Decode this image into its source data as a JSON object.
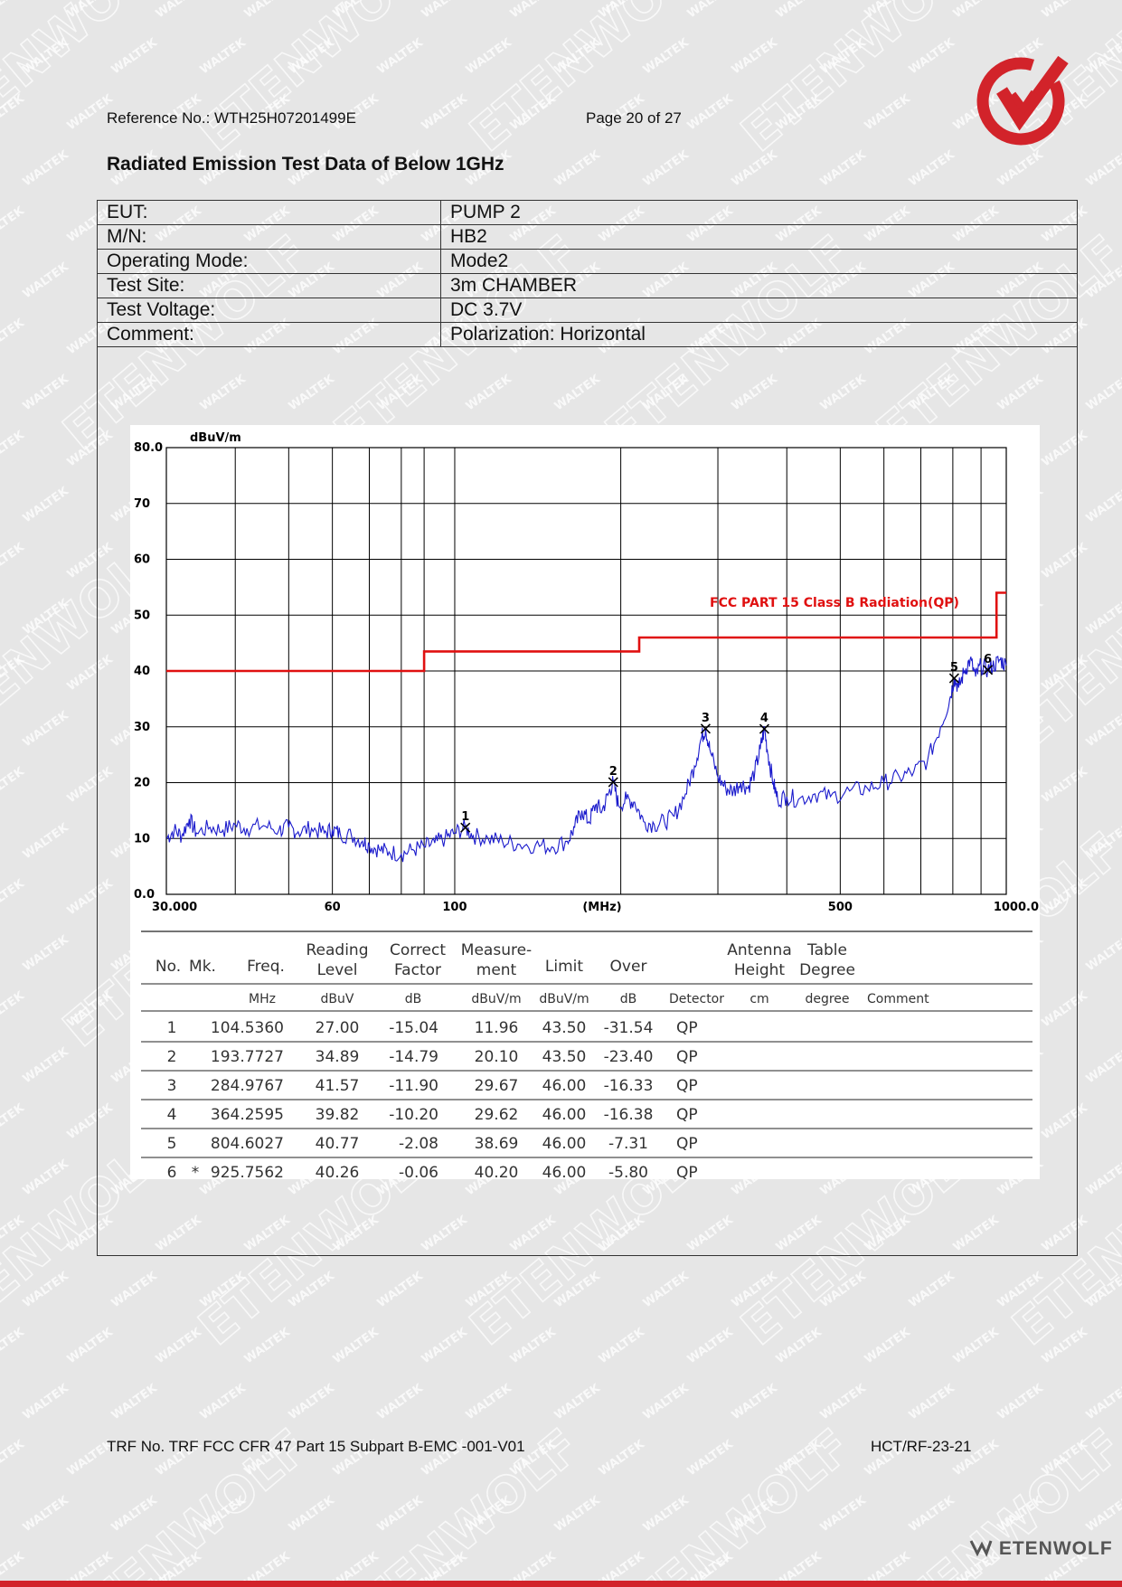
{
  "header": {
    "reference": "Reference No.: WTH25H07201499E",
    "page": "Page 20 of 27"
  },
  "title": "Radiated Emission Test Data of Below 1GHz",
  "info_rows": [
    {
      "key": "EUT:",
      "value": "PUMP 2"
    },
    {
      "key": "M/N:",
      "value": "HB2"
    },
    {
      "key": "Operating Mode:",
      "value": "Mode2"
    },
    {
      "key": "Test Site:",
      "value": "3m CHAMBER"
    },
    {
      "key": "Test Voltage:",
      "value": "DC 3.7V"
    },
    {
      "key": "Comment:",
      "value": "Polarization: Horizontal"
    }
  ],
  "chart_data": {
    "type": "line",
    "ylabel": "dBuV/m",
    "xlabel": "(MHz)",
    "x_scale": "log",
    "xlim": [
      30,
      1000
    ],
    "ylim": [
      0,
      80
    ],
    "y_tick_labels": [
      "80.0",
      "70",
      "60",
      "50",
      "40",
      "30",
      "20",
      "10",
      "0.0"
    ],
    "y_ticks": [
      80,
      70,
      60,
      50,
      40,
      30,
      20,
      10,
      0
    ],
    "x_tick_labels": [
      "30.000",
      "60",
      "100",
      "500",
      "1000.0"
    ],
    "x_ticks": [
      30,
      60,
      100,
      500,
      1000
    ],
    "x_grid": [
      40,
      50,
      60,
      70,
      80,
      88,
      100,
      200,
      300,
      400,
      500,
      600,
      700,
      800,
      900,
      1000
    ],
    "grid": true,
    "limit_name": "FCC PART 15 Class B Radiation(QP)",
    "limit_color": "#e01010",
    "trace_color": "#1a1acc",
    "limit_line": [
      [
        30,
        40
      ],
      [
        88,
        40
      ],
      [
        88,
        43.5
      ],
      [
        216,
        43.5
      ],
      [
        216,
        46
      ],
      [
        960,
        46
      ],
      [
        960,
        54
      ],
      [
        1000,
        54
      ]
    ],
    "trace_points": [
      [
        30,
        10
      ],
      [
        31,
        11.5
      ],
      [
        32,
        10.5
      ],
      [
        33,
        13.5
      ],
      [
        34,
        11
      ],
      [
        36,
        12
      ],
      [
        38,
        11.5
      ],
      [
        40,
        12.5
      ],
      [
        42,
        11.8
      ],
      [
        45,
        12.3
      ],
      [
        48,
        11.5
      ],
      [
        50,
        12
      ],
      [
        52,
        11.2
      ],
      [
        55,
        11.8
      ],
      [
        58,
        11
      ],
      [
        60,
        11.6
      ],
      [
        62,
        10.8
      ],
      [
        65,
        10.5
      ],
      [
        68,
        9.5
      ],
      [
        70,
        8.8
      ],
      [
        73,
        8
      ],
      [
        76,
        7.6
      ],
      [
        80,
        7.2
      ],
      [
        84,
        8
      ],
      [
        88,
        8.5
      ],
      [
        92,
        9.2
      ],
      [
        96,
        10
      ],
      [
        100,
        11
      ],
      [
        104.5,
        11.96
      ],
      [
        108,
        10.5
      ],
      [
        115,
        10
      ],
      [
        122,
        9.5
      ],
      [
        130,
        9
      ],
      [
        140,
        8.8
      ],
      [
        150,
        8.5
      ],
      [
        160,
        9.5
      ],
      [
        165,
        12
      ],
      [
        170,
        15
      ],
      [
        175,
        13
      ],
      [
        180,
        16
      ],
      [
        185,
        15
      ],
      [
        190,
        18
      ],
      [
        193.8,
        20.1
      ],
      [
        198,
        16
      ],
      [
        205,
        17
      ],
      [
        212,
        16.5
      ],
      [
        220,
        13
      ],
      [
        230,
        12.5
      ],
      [
        240,
        13
      ],
      [
        250,
        14
      ],
      [
        262,
        18
      ],
      [
        272,
        23
      ],
      [
        280,
        28
      ],
      [
        285,
        29.67
      ],
      [
        290,
        26
      ],
      [
        300,
        21
      ],
      [
        310,
        19
      ],
      [
        320,
        18.5
      ],
      [
        330,
        20
      ],
      [
        340,
        19
      ],
      [
        350,
        22
      ],
      [
        358,
        26
      ],
      [
        364.3,
        29.62
      ],
      [
        370,
        25
      ],
      [
        378,
        20
      ],
      [
        385,
        17
      ],
      [
        400,
        17.5
      ],
      [
        420,
        17
      ],
      [
        450,
        18
      ],
      [
        480,
        17.5
      ],
      [
        520,
        18.5
      ],
      [
        560,
        19
      ],
      [
        600,
        20
      ],
      [
        640,
        21
      ],
      [
        680,
        22
      ],
      [
        720,
        24
      ],
      [
        760,
        30
      ],
      [
        790,
        35
      ],
      [
        804.6,
        38.69
      ],
      [
        820,
        37
      ],
      [
        840,
        40
      ],
      [
        860,
        42
      ],
      [
        880,
        39
      ],
      [
        900,
        41
      ],
      [
        925.8,
        40.2
      ],
      [
        950,
        41
      ],
      [
        975,
        42
      ],
      [
        1000,
        41
      ]
    ],
    "markers": [
      {
        "label": "1",
        "x": 104.536,
        "y": 11.96
      },
      {
        "label": "2",
        "x": 193.7727,
        "y": 20.1
      },
      {
        "label": "3",
        "x": 284.9767,
        "y": 29.67
      },
      {
        "label": "4",
        "x": 364.2595,
        "y": 29.62
      },
      {
        "label": "5",
        "x": 804.6027,
        "y": 38.69
      },
      {
        "label": "6",
        "x": 925.7562,
        "y": 40.2
      }
    ]
  },
  "results_table": {
    "headers": [
      {
        "line1": "",
        "line2": "No."
      },
      {
        "line1": "",
        "line2": "Mk."
      },
      {
        "line1": "",
        "line2": "Freq."
      },
      {
        "line1": "Reading",
        "line2": "Level"
      },
      {
        "line1": "Correct",
        "line2": "Factor"
      },
      {
        "line1": "Measure-",
        "line2": "ment"
      },
      {
        "line1": "",
        "line2": "Limit"
      },
      {
        "line1": "",
        "line2": "Over"
      },
      {
        "line1": "",
        "line2": ""
      },
      {
        "line1": "Antenna",
        "line2": "Height"
      },
      {
        "line1": "Table",
        "line2": "Degree"
      },
      {
        "line1": "",
        "line2": ""
      }
    ],
    "units": [
      "",
      "",
      "MHz",
      "dBuV",
      "dB",
      "dBuV/m",
      "dBuV/m",
      "dB",
      "Detector",
      "cm",
      "degree",
      "Comment"
    ],
    "rows": [
      [
        "1",
        "",
        "104.5360",
        "27.00",
        "-15.04",
        "11.96",
        "43.50",
        "-31.54",
        "QP",
        "",
        "",
        ""
      ],
      [
        "2",
        "",
        "193.7727",
        "34.89",
        "-14.79",
        "20.10",
        "43.50",
        "-23.40",
        "QP",
        "",
        "",
        ""
      ],
      [
        "3",
        "",
        "284.9767",
        "41.57",
        "-11.90",
        "29.67",
        "46.00",
        "-16.33",
        "QP",
        "",
        "",
        ""
      ],
      [
        "4",
        "",
        "364.2595",
        "39.82",
        "-10.20",
        "29.62",
        "46.00",
        "-16.38",
        "QP",
        "",
        "",
        ""
      ],
      [
        "5",
        "",
        "804.6027",
        "40.77",
        "-2.08",
        "38.69",
        "46.00",
        "-7.31",
        "QP",
        "",
        "",
        ""
      ],
      [
        "6",
        "*",
        "925.7562",
        "40.26",
        "-0.06",
        "40.20",
        "46.00",
        "-5.80",
        "QP",
        "",
        "",
        ""
      ]
    ]
  },
  "footer": {
    "trf": "TRF No. TRF FCC CFR 47 Part 15 Subpart B-EMC -001-V01",
    "code": "HCT/RF-23-21"
  },
  "watermarks": {
    "small": "WALTEK",
    "large": "ETENWOLF"
  },
  "brand": "ETENWOLF",
  "colors": {
    "accent_red": "#d2232a",
    "background": "#e6e6e6"
  }
}
